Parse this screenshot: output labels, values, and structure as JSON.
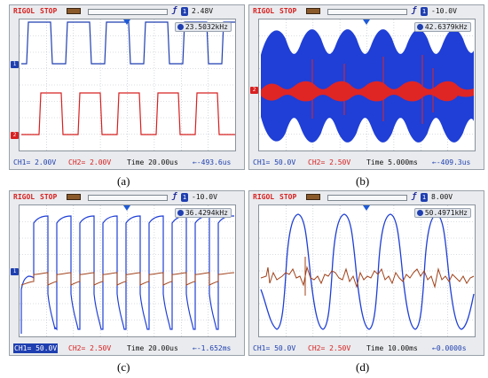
{
  "panels": [
    {
      "caption": "(a)",
      "brand": "RIGOL",
      "state": "STOP",
      "trigger_level": "2.48V",
      "frequency": "23.5032kHz",
      "ch1": "CH1=  2.00V",
      "ch2": "CH2=  2.00V",
      "timebase": "Time 20.00us",
      "trigger_pos": "←-493.6us",
      "ch1_color": "#1f3fb0",
      "ch2_color": "#d82020"
    },
    {
      "caption": "(b)",
      "brand": "RIGOL",
      "state": "STOP",
      "trigger_level": "-10.0V",
      "frequency": "42.6379kHz",
      "ch1": "CH1=  50.0V",
      "ch2": "CH2=  2.50V",
      "timebase": "Time 5.000ms",
      "trigger_pos": "←-409.3us",
      "ch1_color": "#1f3fb0",
      "ch2_color": "#d82020"
    },
    {
      "caption": "(c)",
      "brand": "RIGOL",
      "state": "STOP",
      "trigger_level": "-10.0V",
      "frequency": "36.4294kHz",
      "ch1": "CH1=  50.0V",
      "ch2": "CH2=  2.50V",
      "timebase": "Time 20.00us",
      "trigger_pos": "←-1.652ms",
      "ch1_color": "#1f3fb0",
      "ch2_color": "#a0421b"
    },
    {
      "caption": "(d)",
      "brand": "RIGOL",
      "state": "STOP",
      "trigger_level": "8.00V",
      "frequency": "50.4971kHz",
      "ch1": "CH1=  50.0V",
      "ch2": "CH2=  2.50V",
      "timebase": "Time 10.00ms",
      "trigger_pos": "←0.0000s",
      "ch1_color": "#1f3fb0",
      "ch2_color": "#a0421b"
    }
  ],
  "icons": {
    "trigger": "trigger-edge-icon",
    "freq": "frequency-counter-icon",
    "battery": "battery-icon"
  }
}
